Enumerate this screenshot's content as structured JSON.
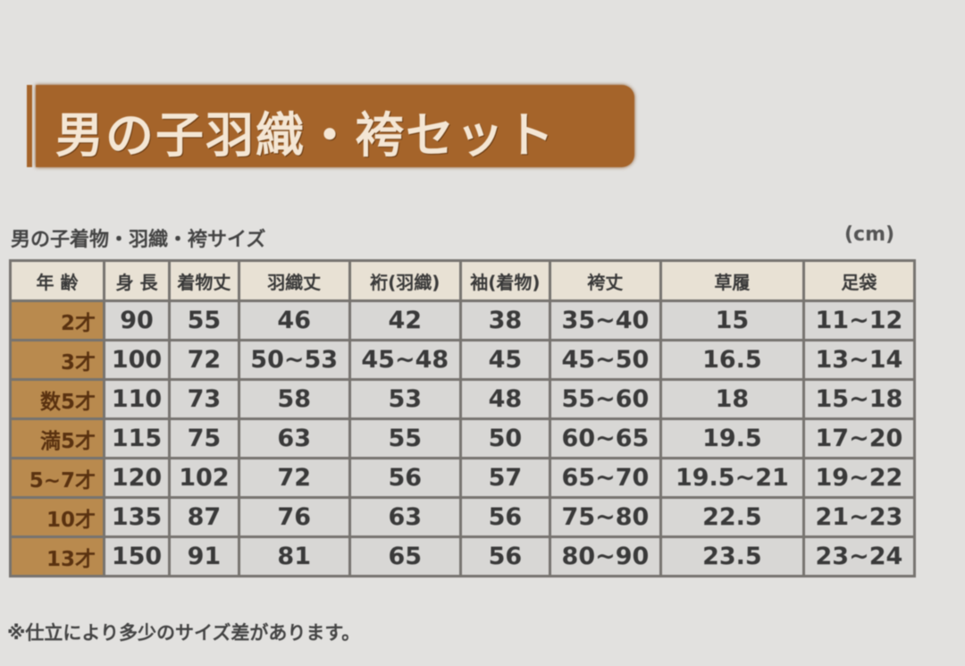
{
  "title": "男の子羽織・袴セット",
  "subtitle": "男の子着物・羽織・袴サイズ",
  "unit": "(cm)",
  "headers": [
    "年 齢",
    "身 長",
    "着物丈",
    "羽織丈",
    "裄(羽織)",
    "袖(着物)",
    "袴丈",
    "草履",
    "足袋"
  ],
  "rows": [
    [
      "2才",
      "90",
      "55",
      "46",
      "42",
      "38",
      "35~40",
      "15",
      "11~12"
    ],
    [
      "3才",
      "100",
      "72",
      "50~53",
      "45~48",
      "45",
      "45~50",
      "16.5",
      "13~14"
    ],
    [
      "数5才",
      "110",
      "73",
      "58",
      "53",
      "48",
      "55~60",
      "18",
      "15~18"
    ],
    [
      "満5才",
      "115",
      "75",
      "63",
      "55",
      "50",
      "60~65",
      "19.5",
      "17~20"
    ],
    [
      "5~7才",
      "120",
      "102",
      "72",
      "56",
      "57",
      "65~70",
      "19.5~21",
      "19~22"
    ],
    [
      "10才",
      "135",
      "87",
      "76",
      "63",
      "56",
      "75~80",
      "22.5",
      "21~23"
    ],
    [
      "13才",
      "150",
      "91",
      "81",
      "65",
      "56",
      "80~90",
      "23.5",
      "23~24"
    ]
  ],
  "note": "※仕立により多少のサイズ差があります。",
  "colors": {
    "banner": "#a5642a",
    "age_cell": "#b98a4e"
  }
}
